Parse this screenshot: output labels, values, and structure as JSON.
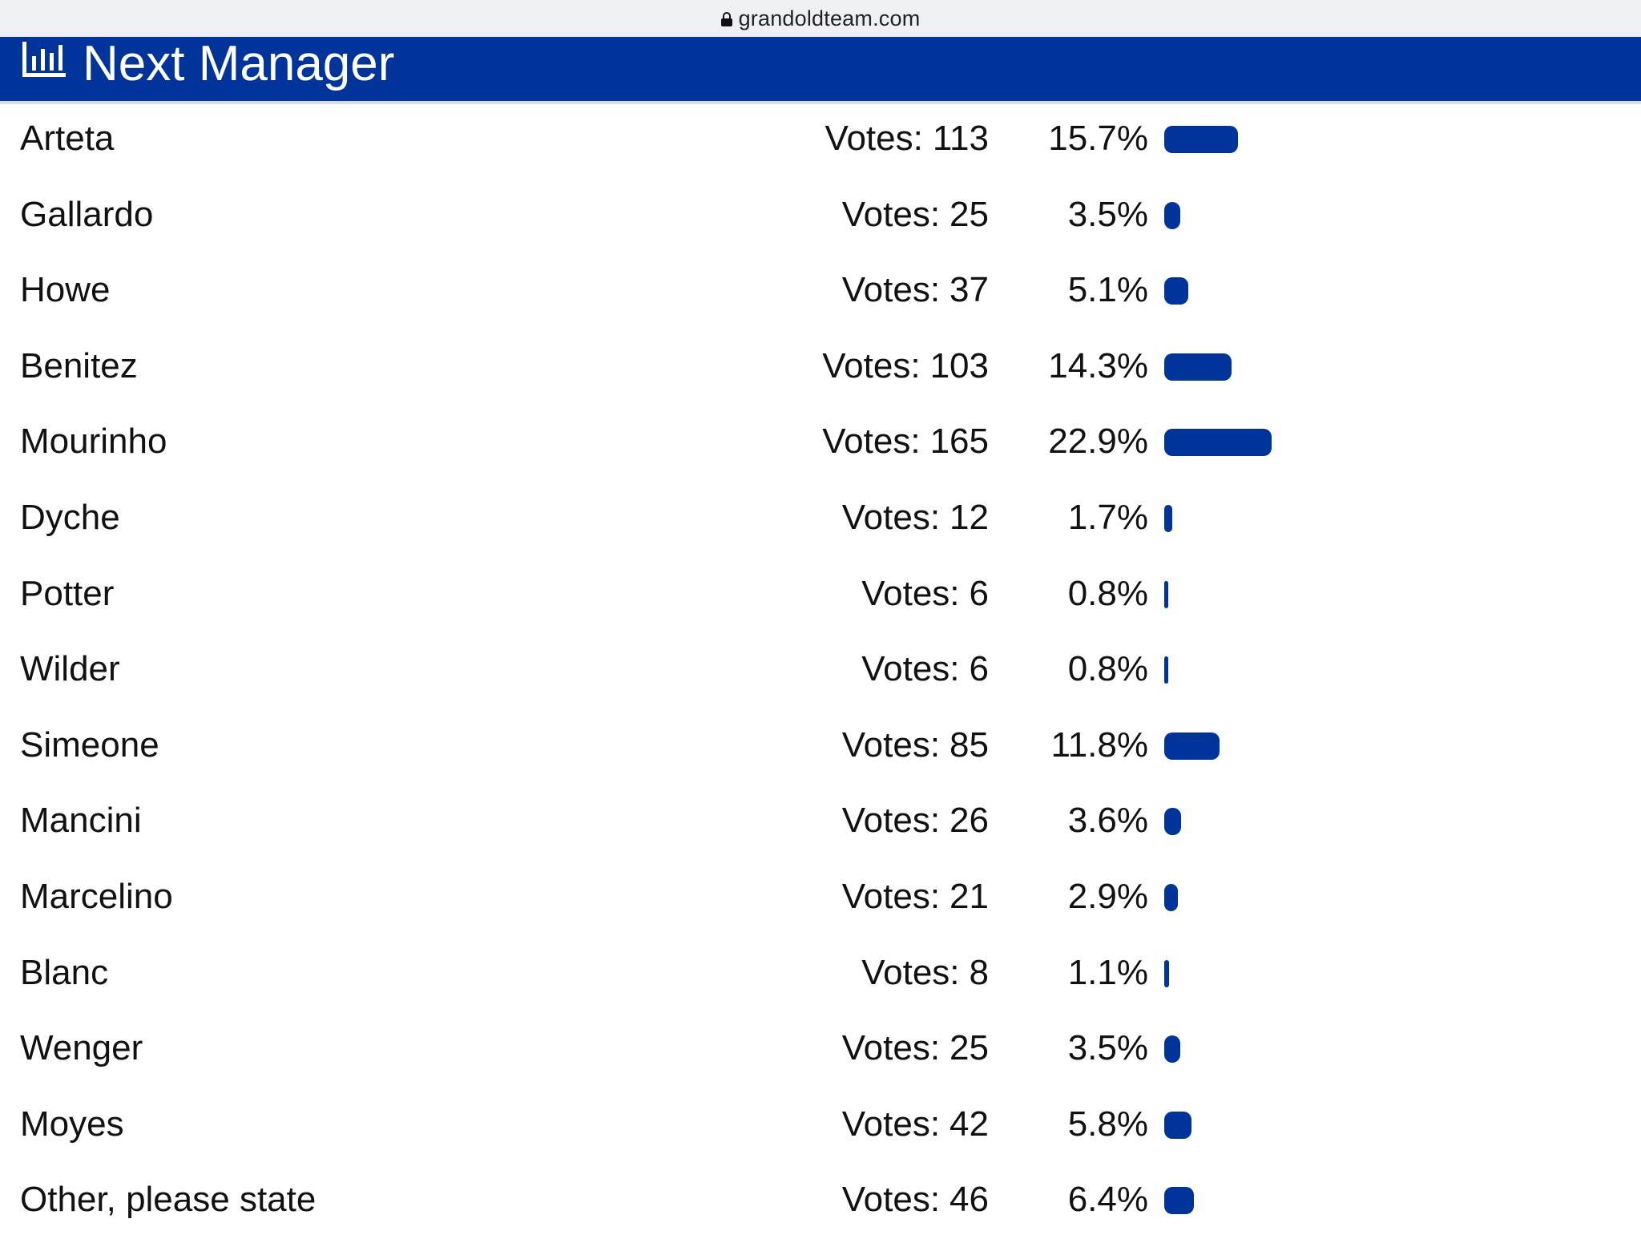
{
  "browser": {
    "url": "grandoldteam.com"
  },
  "poll": {
    "title": "Next Manager",
    "votes_label": "Votes:",
    "accent_color": "#00349b",
    "options": [
      {
        "name": "Arteta",
        "votes": "113",
        "percent": "15.7%",
        "share": 15.7
      },
      {
        "name": "Gallardo",
        "votes": "25",
        "percent": "3.5%",
        "share": 3.5
      },
      {
        "name": "Howe",
        "votes": "37",
        "percent": "5.1%",
        "share": 5.1
      },
      {
        "name": "Benitez",
        "votes": "103",
        "percent": "14.3%",
        "share": 14.3
      },
      {
        "name": "Mourinho",
        "votes": "165",
        "percent": "22.9%",
        "share": 22.9
      },
      {
        "name": "Dyche",
        "votes": "12",
        "percent": "1.7%",
        "share": 1.7
      },
      {
        "name": "Potter",
        "votes": "6",
        "percent": "0.8%",
        "share": 0.8
      },
      {
        "name": "Wilder",
        "votes": "6",
        "percent": "0.8%",
        "share": 0.8
      },
      {
        "name": "Simeone",
        "votes": "85",
        "percent": "11.8%",
        "share": 11.8
      },
      {
        "name": "Mancini",
        "votes": "26",
        "percent": "3.6%",
        "share": 3.6
      },
      {
        "name": "Marcelino",
        "votes": "21",
        "percent": "2.9%",
        "share": 2.9
      },
      {
        "name": "Blanc",
        "votes": "8",
        "percent": "1.1%",
        "share": 1.1
      },
      {
        "name": "Wenger",
        "votes": "25",
        "percent": "3.5%",
        "share": 3.5
      },
      {
        "name": "Moyes",
        "votes": "42",
        "percent": "5.8%",
        "share": 5.8
      },
      {
        "name": "Other, please state",
        "votes": "46",
        "percent": "6.4%",
        "share": 6.4
      }
    ]
  }
}
